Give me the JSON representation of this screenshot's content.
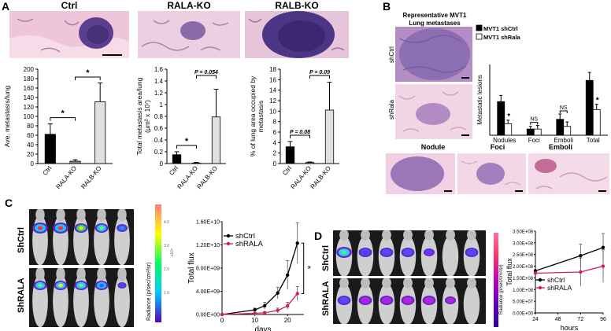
{
  "panels": {
    "A": "A",
    "B": "B",
    "C": "C",
    "D": "D"
  },
  "panelA": {
    "titles": [
      "Ctrl",
      "RALA-KO",
      "RALB-KO"
    ],
    "chart_data": [
      {
        "type": "bar",
        "ylabel": "Ave. metastasis/lung",
        "categories": [
          "Ctrl",
          "RALA-KO",
          "RALB-KO"
        ],
        "values": [
          62,
          5,
          131
        ],
        "errors": [
          22,
          3,
          40
        ],
        "ylim": [
          0,
          200
        ],
        "ticks": [
          "0",
          "20",
          "40",
          "60",
          "80",
          "100",
          "120",
          "140",
          "160",
          "180",
          "200"
        ],
        "sig": [
          "*",
          "*"
        ],
        "colors": [
          "#000000",
          "#888888",
          "#e0e0e0"
        ]
      },
      {
        "type": "bar",
        "ylabel": "Total metastasis area/lung",
        "ylabel2": "(μm² x 10⁷)",
        "categories": [
          "Ctrl",
          "RALA-KO",
          "RALB-KO"
        ],
        "values": [
          0.15,
          0.01,
          0.79
        ],
        "errors": [
          0.05,
          0.01,
          0.47
        ],
        "ylim": [
          0,
          1.6
        ],
        "ticks": [
          "0",
          "0.2",
          "0.4",
          "0.6",
          "0.8",
          "1",
          "1.2",
          "1.4",
          "1.6"
        ],
        "sig": [
          "*",
          "P = 0.054"
        ],
        "colors": [
          "#000000",
          "#888888",
          "#e0e0e0"
        ]
      },
      {
        "type": "bar",
        "ylabel": "% of lung area occupied by",
        "ylabel2": "metastasis",
        "categories": [
          "Ctrl",
          "RALA-KO",
          "RALB-KO"
        ],
        "values": [
          3.2,
          0.2,
          10.2
        ],
        "errors": [
          1.0,
          0.1,
          5.3
        ],
        "ylim": [
          0,
          18
        ],
        "ticks": [
          "0",
          "2",
          "4",
          "6",
          "8",
          "10",
          "12",
          "14",
          "16",
          "18"
        ],
        "sig": [
          "P = 0.08",
          "P = 0.09"
        ],
        "colors": [
          "#000000",
          "#888888",
          "#e0e0e0"
        ]
      }
    ]
  },
  "panelB": {
    "rep_title_1": "Representative MVT1",
    "rep_title_2": "Lung metastases",
    "row_labels": [
      "shCtrl",
      "shRala"
    ],
    "bottom_titles": [
      "Nodule",
      "Foci",
      "Emboli"
    ],
    "chart_data": {
      "type": "bar",
      "ylabel": "Metastatic lesions",
      "categories": [
        "Nodules",
        "Foci",
        "Emboli",
        "Total Metastases"
      ],
      "series": [
        {
          "name": "MVT1 shCtrl",
          "values": [
            1.9,
            0.35,
            0.9,
            3.1
          ],
          "errors": [
            0.35,
            0.15,
            0.3,
            0.45
          ]
        },
        {
          "name": "MVT1 shRala",
          "values": [
            0.65,
            0.35,
            0.5,
            1.45
          ],
          "errors": [
            0.2,
            0.2,
            0.25,
            0.3
          ]
        }
      ],
      "ylim": [
        0,
        4
      ],
      "sig": [
        "*",
        "NS",
        "NS",
        "*"
      ],
      "colors": [
        "#000000",
        "#ffffff"
      ]
    }
  },
  "panelC": {
    "row_labels": [
      "ShCtrl",
      "ShRALA"
    ],
    "colorbar_label": "Radiance (p/sec/cm²/sr)",
    "colorbar_exp": "x10⁸",
    "colorbar_ticks": [
      "4.0",
      "3.0",
      "2.0",
      "1.0"
    ],
    "chart_data": {
      "type": "line",
      "xlabel": "days",
      "ylabel": "Total flux",
      "x": [
        0,
        10,
        13,
        17,
        20,
        23
      ],
      "series": [
        {
          "name": "shCtrl",
          "values": [
            0,
            800000000.0,
            1500000000.0,
            3700000000.0,
            6800000000.0,
            12300000000.0
          ],
          "errors": [
            0,
            300000000.0,
            600000000.0,
            1000000000.0,
            2500000000.0,
            3500000000.0
          ],
          "color": "#000000"
        },
        {
          "name": "shRALA",
          "values": [
            0,
            200000000.0,
            300000000.0,
            700000000.0,
            1500000000.0,
            3600000000.0
          ],
          "errors": [
            0,
            100000000.0,
            200000000.0,
            400000000.0,
            600000000.0,
            1200000000.0
          ],
          "color": "#cc2255"
        }
      ],
      "ylim": [
        0,
        16000000000.0
      ],
      "xlim": [
        0,
        25
      ],
      "yticks": [
        "0.00E+00",
        "4.00E+09",
        "8.00E+09",
        "1.20E+10",
        "1.60E+10"
      ],
      "xticks": [
        "0",
        "10",
        "20"
      ],
      "sig": "*"
    }
  },
  "panelD": {
    "row_labels": [
      "ShCtrl",
      "ShRALA"
    ],
    "colorbar_label": "Radiance (p/sec/cm²/sr)",
    "chart_data": {
      "type": "line",
      "xlabel": "hours",
      "ylabel": "Total flux",
      "x": [
        24,
        72,
        96
      ],
      "series": [
        {
          "name": "shCtrl",
          "values": [
            180000000.0,
            245000000.0,
            280000000.0
          ],
          "errors": [
            5000000.0,
            50000000.0,
            60000000.0
          ],
          "color": "#000000"
        },
        {
          "name": "shRALA",
          "values": [
            170000000.0,
            175000000.0,
            200000000.0
          ],
          "errors": [
            5000000.0,
            60000000.0,
            70000000.0
          ],
          "color": "#cc2255"
        }
      ],
      "ylim": [
        0,
        350000000.0
      ],
      "yticks": [
        "0.00E+00",
        "5.00E+07",
        "1.00E+08",
        "1.50E+08",
        "2.00E+08",
        "2.50E+08",
        "3.00E+08",
        "3.50E+08"
      ],
      "xticks": [
        "24",
        "48",
        "72",
        "96"
      ]
    }
  }
}
